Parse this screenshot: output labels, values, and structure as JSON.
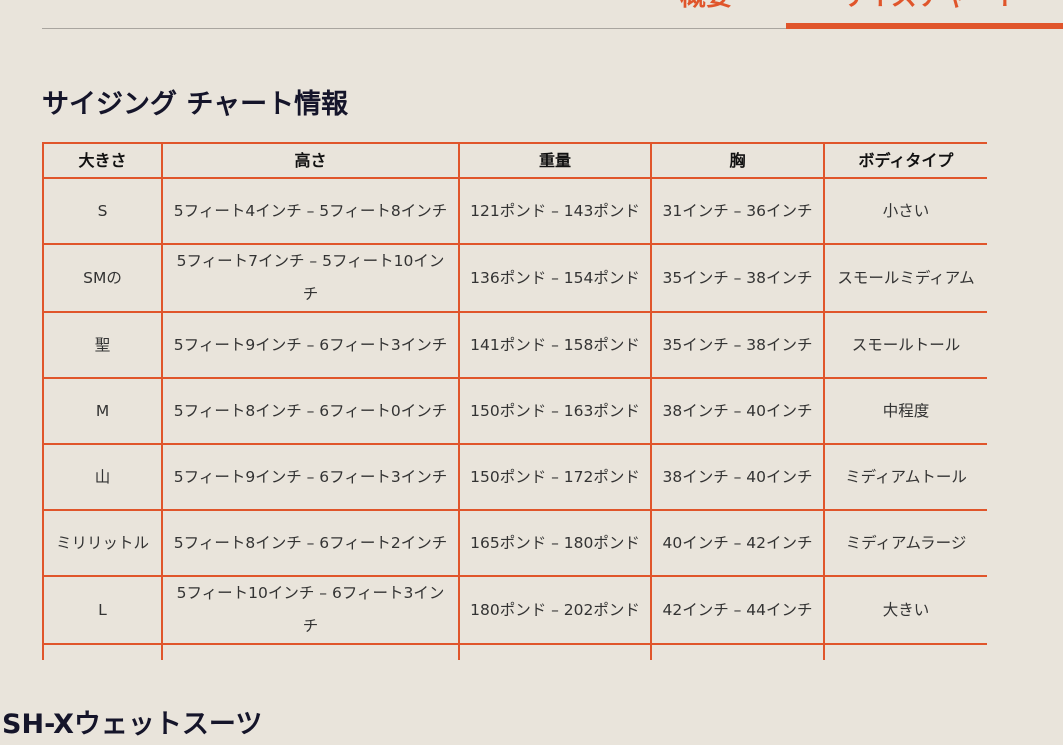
{
  "tabs": [
    {
      "label": "概要",
      "active": false
    },
    {
      "label": "サイズチャート",
      "active": true
    }
  ],
  "accent_color": "#e0552b",
  "section_title": "サイジング チャート情報",
  "table": {
    "headers": [
      "大きさ",
      "高さ",
      "重量",
      "胸",
      "ボディタイプ"
    ],
    "rows": [
      [
        "S",
        "5フィート4インチ – 5フィート8インチ",
        "121ポンド – 143ポンド",
        "31インチ – 36インチ",
        "小さい"
      ],
      [
        "SMの",
        "5フィート7インチ – 5フィート10インチ",
        "136ポンド – 154ポンド",
        "35インチ – 38インチ",
        "スモールミディアム"
      ],
      [
        "聖",
        "5フィート9インチ – 6フィート3インチ",
        "141ポンド – 158ポンド",
        "35インチ – 38インチ",
        "スモールトール"
      ],
      [
        "M",
        "5フィート8インチ – 6フィート0インチ",
        "150ポンド – 163ポンド",
        "38インチ – 40インチ",
        "中程度"
      ],
      [
        "山",
        "5フィート9インチ – 6フィート3インチ",
        "150ポンド – 172ポンド",
        "38インチ – 40インチ",
        "ミディアムトール"
      ],
      [
        "ミリリットル",
        "5フィート8インチ – 6フィート2インチ",
        "165ポンド – 180ポンド",
        "40インチ – 42インチ",
        "ミディアムラージ"
      ],
      [
        "L",
        "5フィート10インチ – 6フィート3インチ",
        "180ポンド – 202ポンド",
        "42インチ – 44インチ",
        "大きい"
      ]
    ]
  },
  "next_heading": "JSH-Xウェットスーツ"
}
